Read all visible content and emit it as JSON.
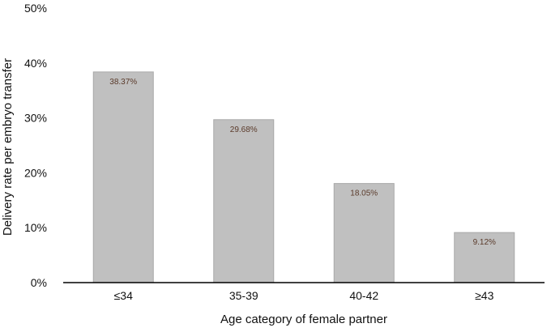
{
  "chart_data": {
    "type": "bar",
    "categories": [
      "≤34",
      "35-39",
      "40-42",
      "≥43"
    ],
    "values": [
      38.37,
      29.68,
      18.05,
      9.12
    ],
    "data_labels": [
      "38.37%",
      "29.68%",
      "18.05%",
      "9.12%"
    ],
    "title": "",
    "xlabel": "Age category of female partner",
    "ylabel": "Delivery rate per embryo transfer",
    "ylim": [
      0,
      50
    ],
    "yticks": [
      0,
      10,
      20,
      30,
      40,
      50
    ],
    "ytick_labels": [
      "0%",
      "10%",
      "20%",
      "30%",
      "40%",
      "50%"
    ],
    "grid": false,
    "legend": "none",
    "colors": {
      "bar": "#c0c0c0",
      "bar_edge": "#a8a8a8",
      "axis": "#000000",
      "data_label": "#5a3a2a"
    }
  }
}
